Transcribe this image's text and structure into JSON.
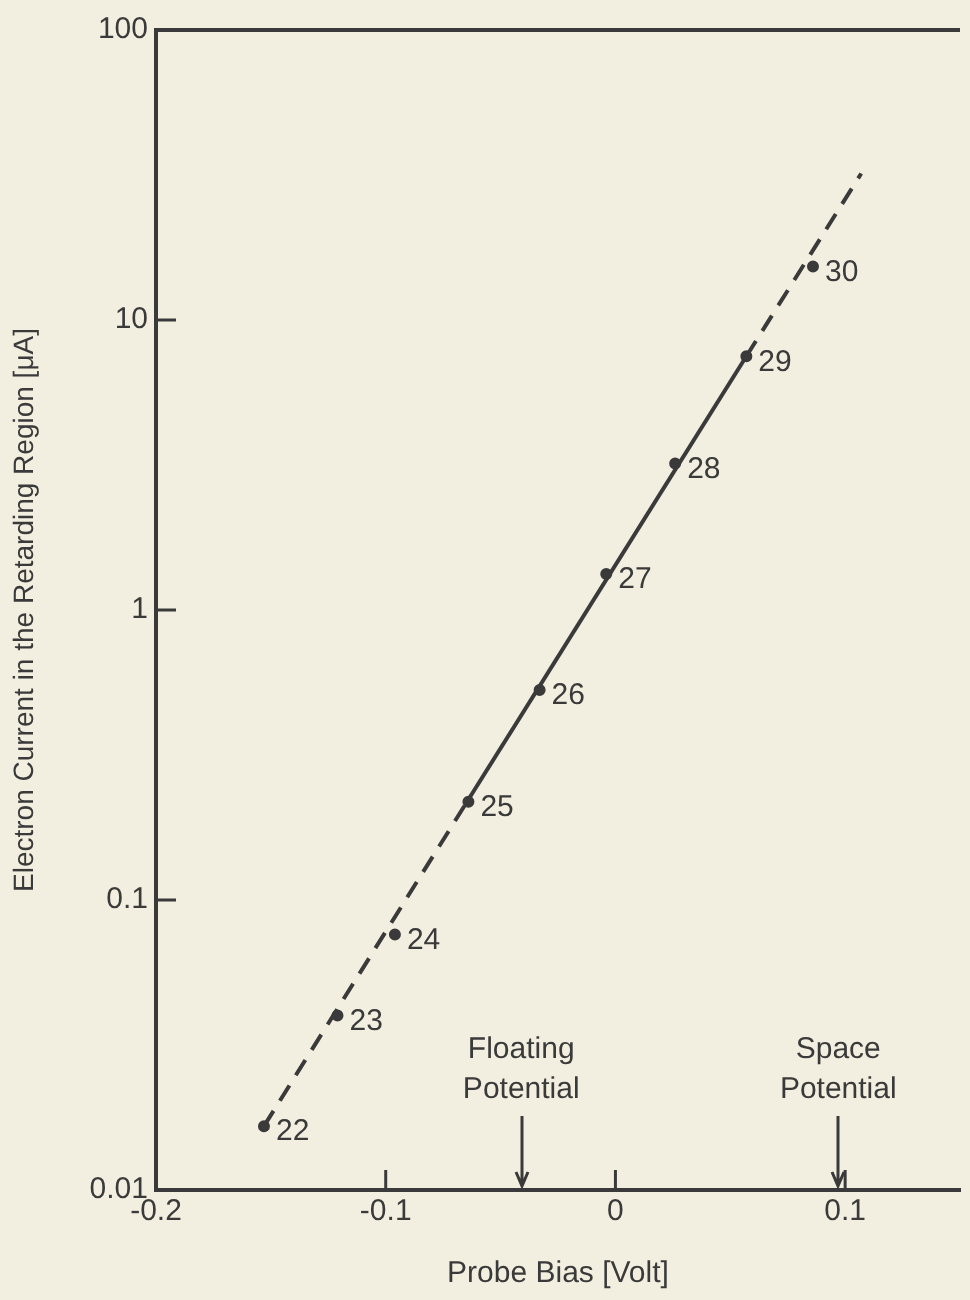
{
  "chart_data": {
    "type": "scatter",
    "xlabel": "Probe Bias [Volt]",
    "ylabel": "Electron Current in the Retarding Region [μA]",
    "log": "y",
    "xlim": [
      -0.2,
      0.15
    ],
    "xticks": [
      -0.2,
      -0.1,
      0,
      0.1
    ],
    "ylim": [
      0.01,
      100
    ],
    "yticks": [
      0.01,
      0.1,
      1,
      10,
      100
    ],
    "grid": false,
    "legend": false,
    "marker": "circle",
    "x": [
      -0.153,
      -0.121,
      -0.096,
      -0.064,
      -0.033,
      -0.004,
      0.026,
      0.057,
      0.086
    ],
    "series": [
      {
        "type": "scatter",
        "color": "#3a3a3a",
        "values": [
          0.0166,
          0.04,
          0.076,
          0.218,
          0.53,
          1.33,
          3.2,
          7.5,
          15.3
        ]
      },
      {
        "type": "line",
        "color": "#3a3a3a",
        "line_style": "dashed",
        "marker": "none",
        "x": [
          -0.153,
          -0.064
        ],
        "values": [
          0.0166,
          0.222
        ]
      },
      {
        "type": "line",
        "color": "#3a3a3a",
        "line_style": "solid",
        "marker": "none",
        "x": [
          -0.064,
          0.057
        ],
        "values": [
          0.222,
          7.5
        ]
      },
      {
        "type": "line",
        "color": "#3a3a3a",
        "line_style": "dashed",
        "marker": "none",
        "x": [
          0.057,
          0.107
        ],
        "values": [
          7.5,
          32
        ]
      }
    ],
    "ref_lines": [
      {
        "axis": "x",
        "value": -0.041,
        "label": "Floating Potential"
      },
      {
        "axis": "x",
        "value": 0.097,
        "label": "Space Potential"
      }
    ],
    "annotations": [
      {
        "text": "22",
        "x": -0.153,
        "y": 0.0166
      },
      {
        "text": "23",
        "x": -0.121,
        "y": 0.04
      },
      {
        "text": "24",
        "x": -0.096,
        "y": 0.076
      },
      {
        "text": "25",
        "x": -0.064,
        "y": 0.218
      },
      {
        "text": "26",
        "x": -0.033,
        "y": 0.53
      },
      {
        "text": "27",
        "x": -0.004,
        "y": 1.33
      },
      {
        "text": "28",
        "x": 0.026,
        "y": 3.2
      },
      {
        "text": "29",
        "x": 0.057,
        "y": 7.5
      },
      {
        "text": "30",
        "x": 0.086,
        "y": 15.3
      }
    ]
  }
}
